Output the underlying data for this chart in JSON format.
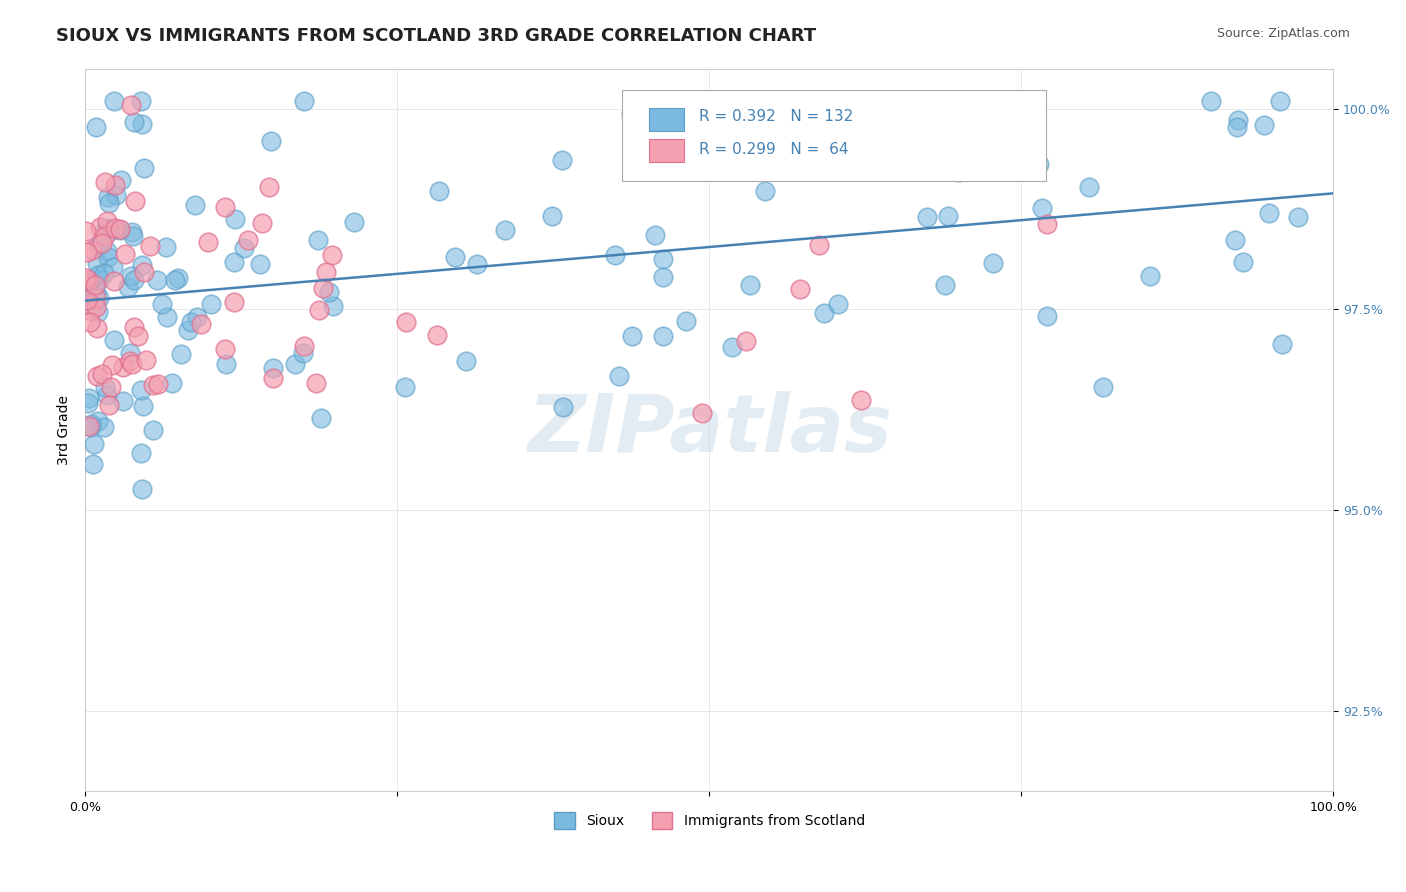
{
  "title": "SIOUX VS IMMIGRANTS FROM SCOTLAND 3RD GRADE CORRELATION CHART",
  "source": "Source: ZipAtlas.com",
  "xlabel": "",
  "ylabel": "3rd Grade",
  "xlim": [
    0.0,
    1.0
  ],
  "ylim": [
    0.915,
    1.005
  ],
  "yticks": [
    0.925,
    0.95,
    0.975,
    1.0
  ],
  "ytick_labels": [
    "92.5%",
    "95.0%",
    "97.5%",
    "100.0%"
  ],
  "xticks": [
    0.0,
    0.25,
    0.5,
    0.75,
    1.0
  ],
  "xtick_labels": [
    "0.0%",
    "",
    "",
    "",
    "100.0%"
  ],
  "legend2_entries": [
    {
      "label": "Sioux",
      "color": "#a8c8e8"
    },
    {
      "label": "Immigrants from Scotland",
      "color": "#f4a0b0"
    }
  ],
  "sioux_r": 0.392,
  "sioux_n": 132,
  "scotland_r": 0.299,
  "scotland_n": 64,
  "sioux_color": "#7cb9e0",
  "sioux_color_edge": "#5a9ec8",
  "scotland_color": "#f4a0b0",
  "scotland_color_edge": "#e07090",
  "trend_color": "#4682b4",
  "background_color": "#ffffff",
  "watermark": "ZIPatlas",
  "watermark_color": "#c8d8e8",
  "title_fontsize": 13,
  "axis_label_fontsize": 10,
  "tick_fontsize": 9
}
